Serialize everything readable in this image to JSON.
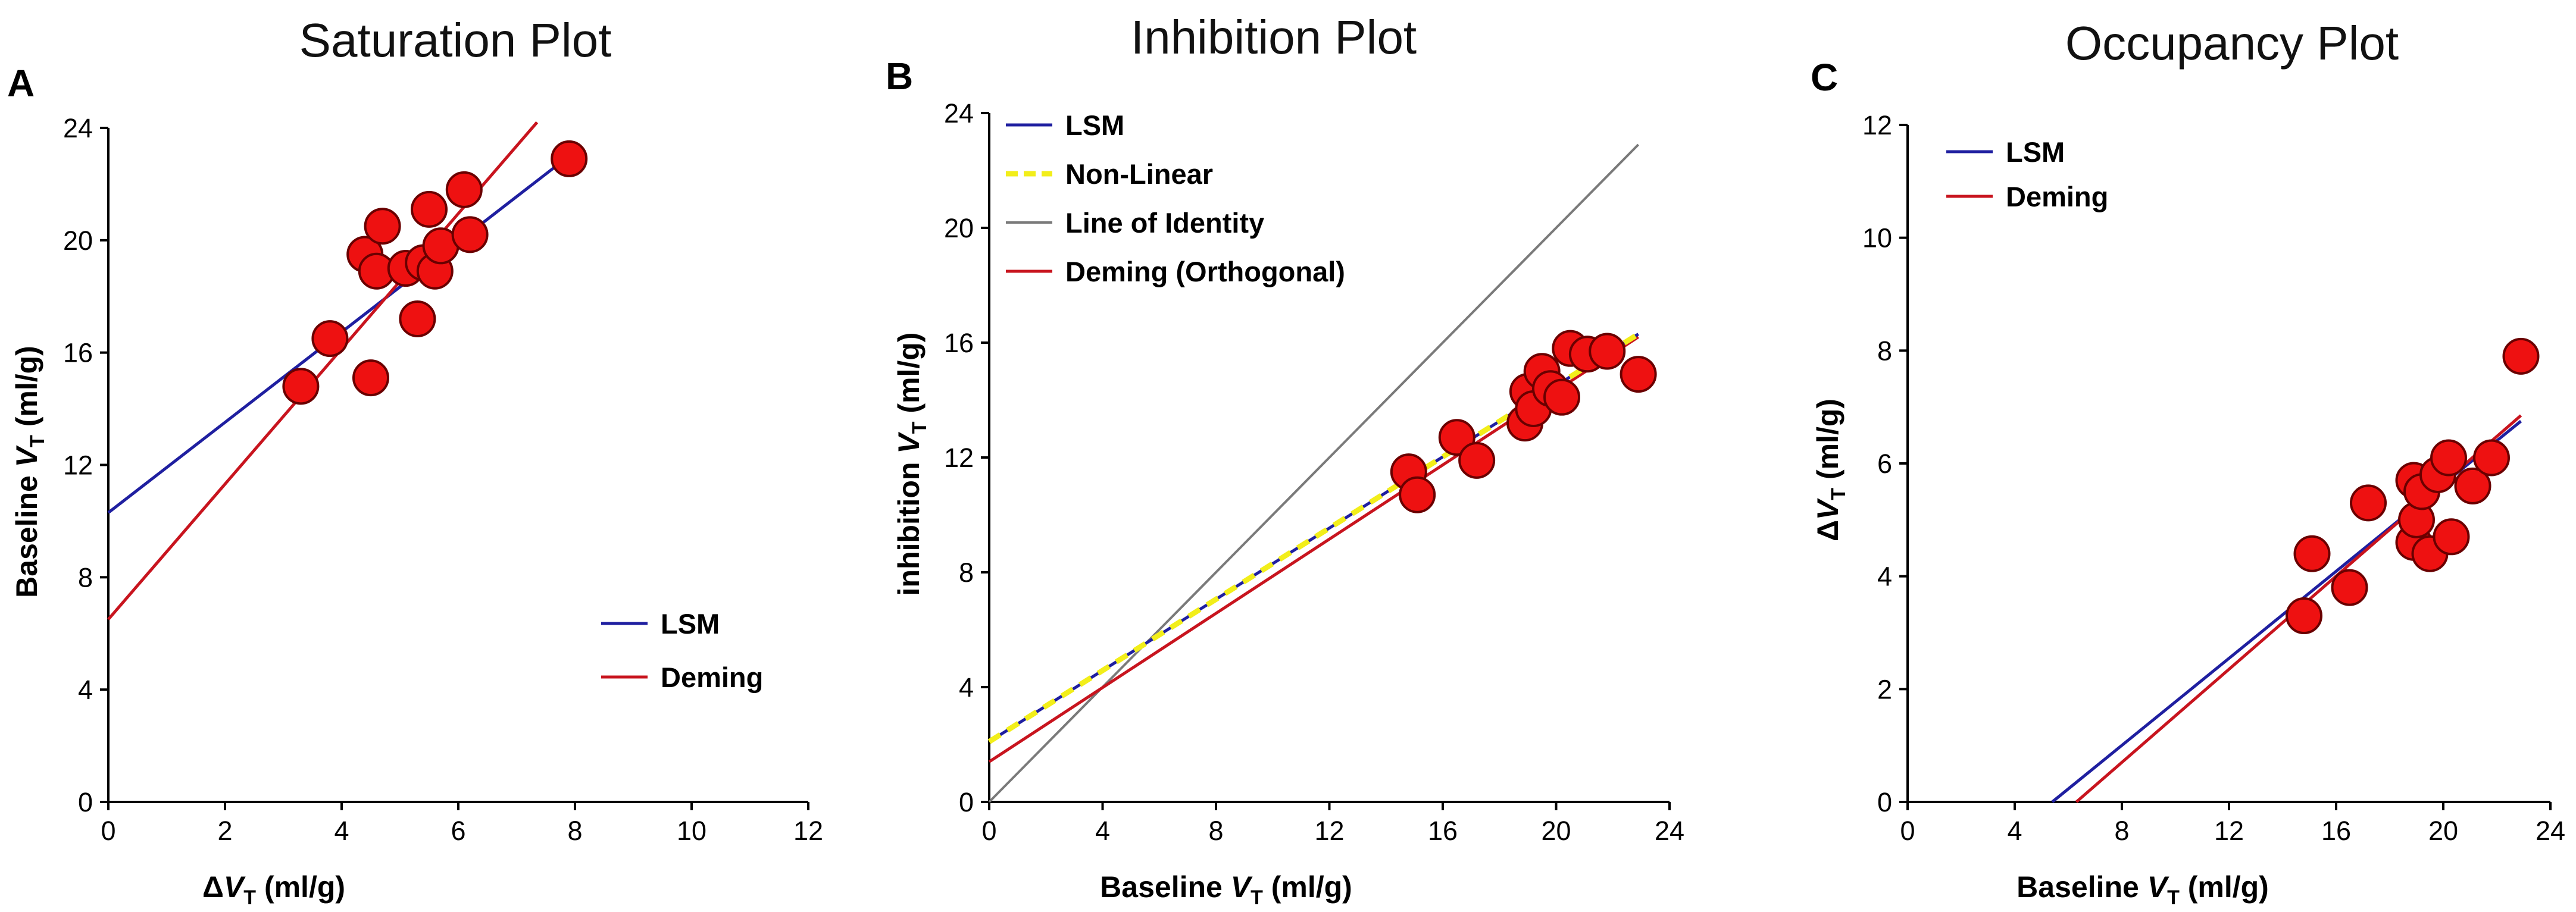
{
  "figure": {
    "panel_letters": [
      "A",
      "B",
      "C"
    ]
  },
  "colors": {
    "lsm": "#1f1fa0",
    "deming": "#c8141e",
    "nonlinear": "#f2ee1a",
    "identity": "#7a7a7a",
    "point_fill": "#ee1111",
    "point_stroke": "#6a0000",
    "axis": "#000000"
  },
  "chart_data": [
    {
      "type": "scatter",
      "title": "Saturation Plot",
      "xlabel": "ΔV_T (ml/g)",
      "ylabel": "Baseline V_T (ml/g)",
      "xlim": [
        0,
        12
      ],
      "ylim": [
        0,
        24
      ],
      "xticks": [
        "0",
        "2",
        "4",
        "6",
        "8",
        "10",
        "12"
      ],
      "yticks": [
        "0",
        "4",
        "8",
        "12",
        "16",
        "20",
        "24"
      ],
      "points": [
        [
          3.3,
          14.8
        ],
        [
          3.8,
          16.5
        ],
        [
          4.4,
          19.5
        ],
        [
          4.5,
          15.1
        ],
        [
          4.6,
          18.9
        ],
        [
          4.7,
          20.5
        ],
        [
          5.1,
          19.0
        ],
        [
          5.3,
          17.2
        ],
        [
          5.4,
          19.2
        ],
        [
          5.5,
          21.1
        ],
        [
          5.6,
          18.9
        ],
        [
          5.7,
          19.8
        ],
        [
          6.1,
          21.8
        ],
        [
          6.2,
          20.2
        ],
        [
          7.9,
          22.9
        ]
      ],
      "lines": [
        {
          "name": "LSM",
          "style": "lsm",
          "x": [
            0,
            7.9
          ],
          "y": [
            10.3,
            23.0
          ]
        },
        {
          "name": "Deming",
          "style": "deming",
          "x": [
            0,
            7.35
          ],
          "y": [
            6.5,
            24.2
          ]
        }
      ],
      "legend": {
        "position": "bottom-right",
        "entries": [
          {
            "label": "LSM",
            "style": "lsm"
          },
          {
            "label": "Deming",
            "style": "deming"
          }
        ]
      }
    },
    {
      "type": "scatter",
      "title": "Inhibition Plot",
      "xlabel": "Baseline V_T (ml/g)",
      "ylabel": "inhibition V_T (ml/g)",
      "xlim": [
        0,
        24
      ],
      "ylim": [
        0,
        24
      ],
      "xticks": [
        "0",
        "4",
        "8",
        "12",
        "16",
        "20",
        "24"
      ],
      "yticks": [
        "0",
        "4",
        "8",
        "12",
        "16",
        "20",
        "24"
      ],
      "points": [
        [
          14.8,
          11.5
        ],
        [
          15.1,
          10.7
        ],
        [
          16.5,
          12.7
        ],
        [
          17.2,
          11.9
        ],
        [
          18.9,
          13.2
        ],
        [
          19.0,
          14.3
        ],
        [
          19.2,
          13.7
        ],
        [
          19.5,
          15.0
        ],
        [
          19.8,
          14.4
        ],
        [
          20.2,
          14.1
        ],
        [
          20.5,
          15.8
        ],
        [
          21.1,
          15.6
        ],
        [
          21.8,
          15.7
        ],
        [
          22.9,
          14.9
        ]
      ],
      "lines": [
        {
          "name": "Line of Identity",
          "style": "identity",
          "x": [
            0,
            22.9
          ],
          "y": [
            0,
            22.9
          ]
        },
        {
          "name": "Deming (Orthogonal)",
          "style": "deming",
          "x": [
            0,
            22.9
          ],
          "y": [
            1.4,
            16.2
          ]
        },
        {
          "name": "LSM",
          "style": "lsm",
          "x": [
            0,
            22.9
          ],
          "y": [
            2.1,
            16.3
          ]
        },
        {
          "name": "Non-Linear",
          "style": "nonlinear",
          "x": [
            0,
            22.9
          ],
          "y": [
            2.1,
            16.3
          ]
        }
      ],
      "legend": {
        "position": "top-left",
        "entries": [
          {
            "label": "LSM",
            "style": "lsm"
          },
          {
            "label": "Non-Linear",
            "style": "nonlinear"
          },
          {
            "label": "Line of Identity",
            "style": "identity"
          },
          {
            "label": "Deming (Orthogonal)",
            "style": "deming"
          }
        ]
      }
    },
    {
      "type": "scatter",
      "title": "Occupancy Plot",
      "xlabel": "Baseline V_T (ml/g)",
      "ylabel": "ΔV_T (ml/g)",
      "xlim": [
        0,
        24
      ],
      "ylim": [
        0,
        12
      ],
      "xticks": [
        "0",
        "4",
        "8",
        "12",
        "16",
        "20",
        "24"
      ],
      "yticks": [
        "0",
        "2",
        "4",
        "6",
        "8",
        "10",
        "12"
      ],
      "points": [
        [
          14.8,
          3.3
        ],
        [
          15.1,
          4.4
        ],
        [
          16.5,
          3.8
        ],
        [
          17.2,
          5.3
        ],
        [
          18.9,
          4.6
        ],
        [
          18.9,
          5.7
        ],
        [
          19.0,
          5.0
        ],
        [
          19.2,
          5.5
        ],
        [
          19.5,
          4.4
        ],
        [
          19.8,
          5.8
        ],
        [
          20.2,
          6.1
        ],
        [
          20.3,
          4.7
        ],
        [
          21.1,
          5.6
        ],
        [
          21.8,
          6.1
        ],
        [
          22.9,
          7.9
        ]
      ],
      "lines": [
        {
          "name": "LSM",
          "style": "lsm",
          "x": [
            5.4,
            22.9
          ],
          "y": [
            0,
            6.75
          ]
        },
        {
          "name": "Deming",
          "style": "deming",
          "x": [
            6.3,
            22.9
          ],
          "y": [
            0,
            6.85
          ]
        }
      ],
      "legend": {
        "position": "top-left",
        "entries": [
          {
            "label": "LSM",
            "style": "lsm"
          },
          {
            "label": "Deming",
            "style": "deming"
          }
        ]
      }
    }
  ]
}
